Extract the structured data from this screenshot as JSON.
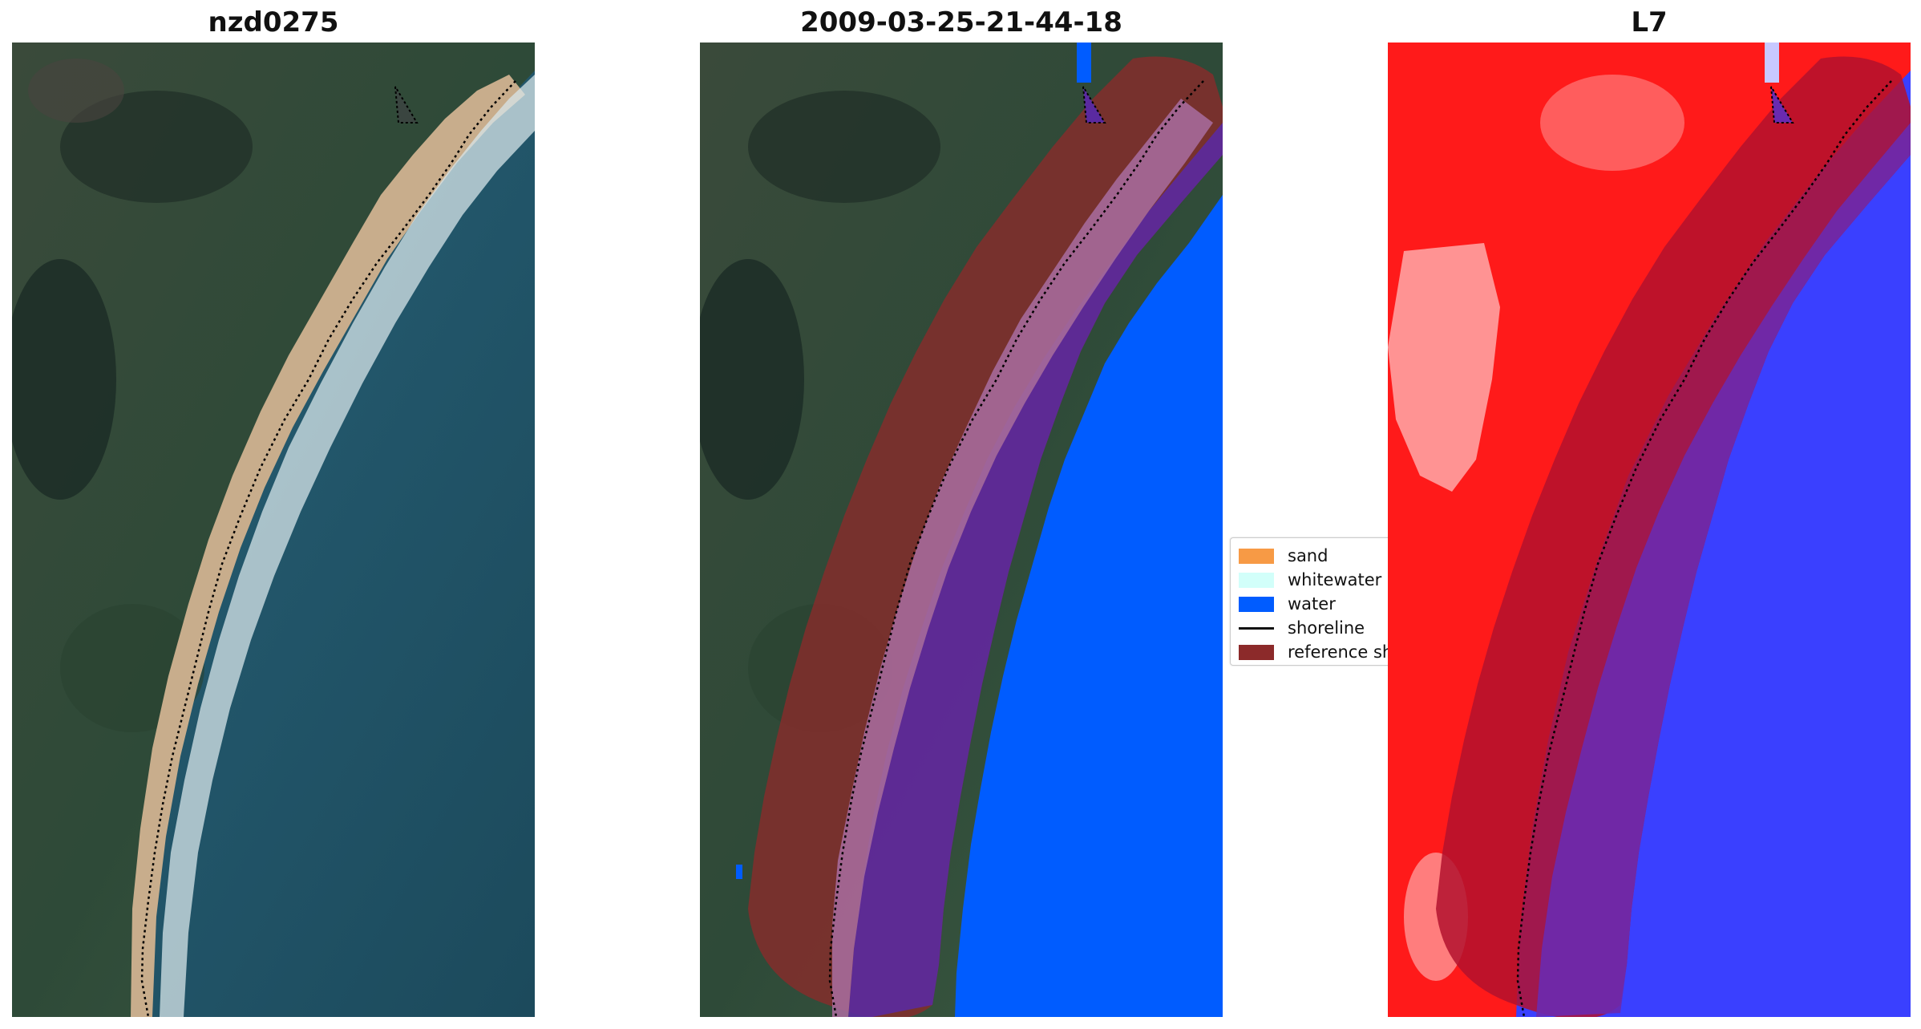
{
  "panels": [
    {
      "title": "nzd0275"
    },
    {
      "title": "2009-03-25-21-44-18"
    },
    {
      "title": "L7"
    }
  ],
  "legend": {
    "items": [
      {
        "label": "sand",
        "color": "#f79a45"
      },
      {
        "label": "whitewater",
        "color": "#d2fffa"
      },
      {
        "label": "water",
        "color": "#005cff"
      },
      {
        "label": "shoreline",
        "color": "#000000"
      },
      {
        "label": "reference sh",
        "color": "#8c2a2a"
      }
    ]
  },
  "colors": {
    "reference_buffer": "#8c2a2a",
    "water_class": "#005cff",
    "shoreline_line": "#000000",
    "index_land": "#ff1a1a",
    "index_water": "#3340ff"
  }
}
